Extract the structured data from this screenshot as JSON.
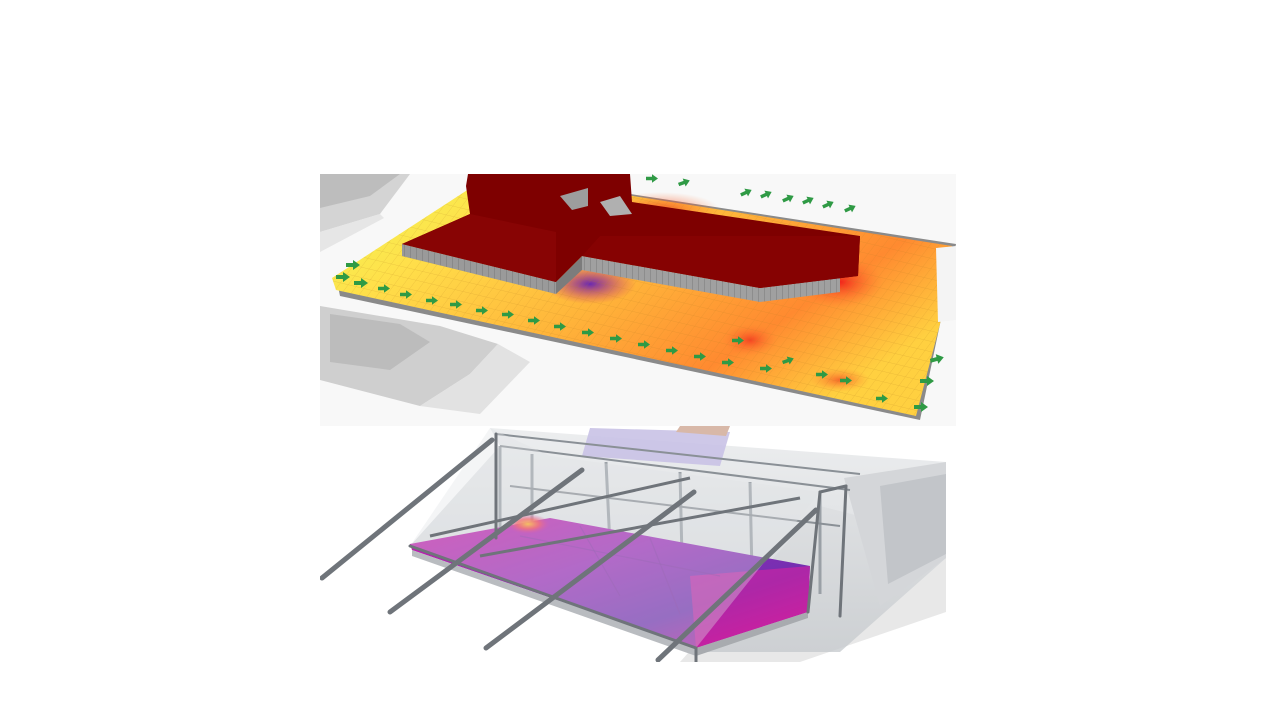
{
  "slide": {
    "background": "#ffffff"
  },
  "figure": {
    "panels": [
      {
        "id": "site-wind-heatmap",
        "colors": {
          "ground": "#f7f7f7",
          "neighbor_building": "#c9c9c9",
          "site_low": "#eeff5a",
          "site_mid": "#ffc23a",
          "site_high": "#f03a1e",
          "building_roof": "#7e0000",
          "building_wall": "#8e8e8e",
          "arrow": "#2f9a45"
        }
      },
      {
        "id": "canopy-interior-heatmap",
        "colors": {
          "floor_low": "#6a2fb0",
          "floor_high": "#e0149e",
          "glass": "#cfd3d8",
          "frame": "#7a7e84",
          "hotspot": "#ff9a2a"
        }
      }
    ]
  }
}
